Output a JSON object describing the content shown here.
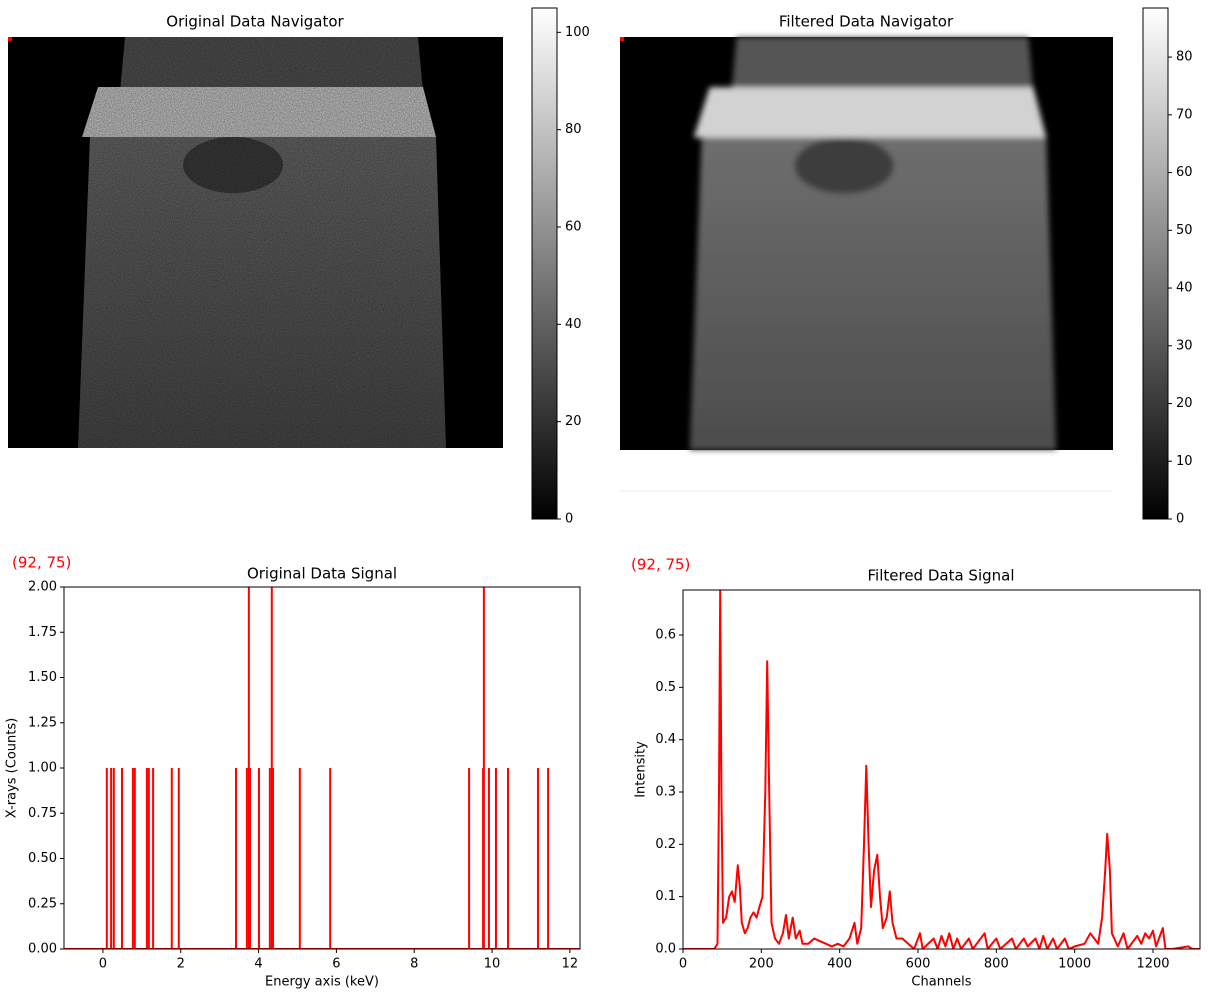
{
  "chart_data": [
    {
      "type": "image",
      "title": "Original Data Navigator",
      "colormap": "gray",
      "ylim": [
        0,
        105
      ],
      "yticks": [
        0,
        20,
        40,
        60,
        80,
        100
      ]
    },
    {
      "type": "image",
      "title": "Filtered Data Navigator",
      "colormap": "gray",
      "ylim": [
        0,
        88.5
      ],
      "yticks": [
        0,
        10,
        20,
        30,
        40,
        50,
        60,
        70,
        80
      ]
    },
    {
      "type": "spikes",
      "title": "Original Data Signal",
      "annotation": "(92, 75)",
      "xlabel": "Energy axis (keV)",
      "ylabel": "X-rays (Counts)",
      "color": "#ff0000",
      "x": [
        0.1,
        0.21,
        0.28,
        0.49,
        0.77,
        0.82,
        1.13,
        1.18,
        1.29,
        1.77,
        1.95,
        3.42,
        3.7,
        3.75,
        3.78,
        4.01,
        4.29,
        4.34,
        4.37,
        5.06,
        5.84,
        9.41,
        9.77,
        9.79,
        9.92,
        10.1,
        10.41,
        11.18,
        11.44
      ],
      "values": [
        1,
        1,
        1,
        1,
        1,
        1,
        1,
        1,
        1,
        1,
        1,
        1,
        1,
        2,
        1,
        1,
        1,
        2,
        1,
        1,
        1,
        1,
        1,
        2,
        1,
        1,
        1,
        1,
        1
      ],
      "xlim": [
        -1,
        12.26
      ],
      "ylim": [
        0,
        2
      ],
      "xticks": [
        0,
        2,
        4,
        6,
        8,
        10,
        12
      ],
      "yticks": [
        {
          "value": 0,
          "label": "0.00"
        },
        0.25,
        {
          "value": 0.5,
          "label": "0.50"
        },
        0.75,
        {
          "value": 1,
          "label": "1.00"
        },
        1.25,
        {
          "value": 1.5,
          "label": "1.50"
        },
        1.75,
        {
          "value": 2,
          "label": "2.00"
        }
      ]
    },
    {
      "type": "line",
      "title": "Filtered Data Signal",
      "annotation": "(92, 75)",
      "xlabel": "Channels",
      "ylabel": "Intensity",
      "color": "#ff0000",
      "x": [
        0,
        80,
        88,
        92,
        95,
        98,
        102,
        110,
        118,
        125,
        132,
        140,
        145,
        150,
        158,
        165,
        172,
        180,
        188,
        195,
        203,
        210,
        215,
        220,
        226,
        235,
        245,
        255,
        263,
        270,
        280,
        288,
        298,
        305,
        320,
        335,
        350,
        365,
        380,
        395,
        410,
        425,
        438,
        445,
        455,
        462,
        468,
        474,
        480,
        488,
        496,
        503,
        510,
        520,
        528,
        535,
        545,
        560,
        575,
        590,
        605,
        612,
        640,
        650,
        660,
        670,
        680,
        690,
        700,
        710,
        730,
        740,
        770,
        778,
        800,
        810,
        840,
        850,
        870,
        880,
        900,
        910,
        920,
        930,
        945,
        955,
        975,
        985,
        1000,
        1025,
        1040,
        1050,
        1060,
        1070,
        1078,
        1083,
        1090,
        1095,
        1110,
        1125,
        1135,
        1160,
        1170,
        1180,
        1190,
        1200,
        1208,
        1225,
        1232,
        1250,
        1290,
        1300,
        1320
      ],
      "values": [
        0,
        0,
        0.01,
        0.3,
        0.69,
        0.3,
        0.05,
        0.06,
        0.1,
        0.11,
        0.09,
        0.16,
        0.12,
        0.05,
        0.03,
        0.04,
        0.06,
        0.07,
        0.06,
        0.08,
        0.1,
        0.3,
        0.55,
        0.3,
        0.05,
        0.02,
        0.01,
        0.03,
        0.065,
        0.02,
        0.06,
        0.02,
        0.035,
        0.01,
        0.01,
        0.02,
        0.015,
        0.01,
        0.005,
        0.01,
        0.005,
        0.02,
        0.05,
        0.01,
        0.04,
        0.2,
        0.35,
        0.2,
        0.08,
        0.15,
        0.18,
        0.1,
        0.04,
        0.06,
        0.11,
        0.05,
        0.02,
        0.02,
        0.01,
        0,
        0.03,
        0,
        0.02,
        0,
        0.025,
        0.005,
        0.03,
        0,
        0.02,
        0,
        0.02,
        0,
        0.03,
        0,
        0.02,
        0,
        0.02,
        0,
        0.02,
        0.005,
        0.02,
        0,
        0.025,
        0,
        0.02,
        0,
        0.02,
        0,
        0.005,
        0.01,
        0.03,
        0.02,
        0.01,
        0.06,
        0.15,
        0.22,
        0.15,
        0.03,
        0.005,
        0.03,
        0,
        0.025,
        0.01,
        0.03,
        0.02,
        0.035,
        0.005,
        0.04,
        0,
        0,
        0.005,
        0,
        0
      ],
      "xlim": [
        0,
        1320
      ],
      "ylim": [
        0,
        0.686
      ],
      "xticks": [
        0,
        200,
        400,
        600,
        800,
        1000,
        1200
      ],
      "yticks": [
        {
          "value": 0,
          "label": "0.0"
        },
        0.1,
        0.2,
        0.3,
        0.4,
        0.5,
        0.6
      ]
    }
  ]
}
